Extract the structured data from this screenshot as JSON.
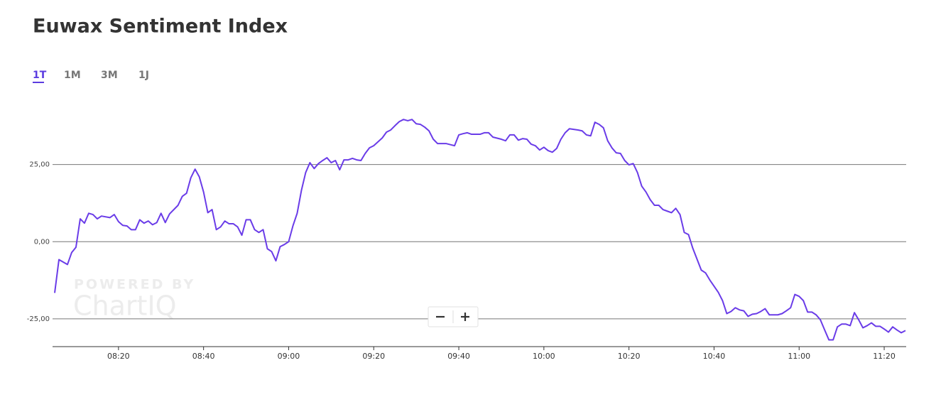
{
  "chart_data": {
    "type": "line",
    "title": "Euwax Sentiment Index",
    "range_tabs": [
      "1T",
      "1M",
      "3M",
      "1J"
    ],
    "active_tab": 0,
    "watermark": [
      "POWERED BY",
      "ChartIQ"
    ],
    "color": "#6a3ce8",
    "grid": true,
    "x": [
      "08:05",
      "08:06",
      "08:08",
      "08:09",
      "08:10",
      "08:11",
      "08:12",
      "08:13",
      "08:14",
      "08:15",
      "08:16",
      "08:18",
      "08:19",
      "08:20",
      "08:21",
      "08:22",
      "08:23",
      "08:24",
      "08:25",
      "08:26",
      "08:27",
      "08:28",
      "08:29",
      "08:30",
      "08:31",
      "08:32",
      "08:34",
      "08:35",
      "08:36",
      "08:37",
      "08:38",
      "08:39",
      "08:40",
      "08:41",
      "08:42",
      "08:43",
      "08:44",
      "08:45",
      "08:46",
      "08:47",
      "08:48",
      "08:49",
      "08:50",
      "08:51",
      "08:52",
      "08:53",
      "08:54",
      "08:55",
      "08:56",
      "08:57",
      "08:58",
      "08:59",
      "09:00",
      "09:01",
      "09:02",
      "09:03",
      "09:04",
      "09:05",
      "09:06",
      "09:07",
      "09:08",
      "09:09",
      "09:10",
      "09:11",
      "09:12",
      "09:13",
      "09:14",
      "09:15",
      "09:16",
      "09:17",
      "09:18",
      "09:19",
      "09:20",
      "09:22",
      "09:23",
      "09:24",
      "09:25",
      "09:26",
      "09:27",
      "09:28",
      "09:29",
      "09:30",
      "09:31",
      "09:32",
      "09:33",
      "09:34",
      "09:35",
      "09:37",
      "09:39",
      "09:40",
      "09:41",
      "09:42",
      "09:43",
      "09:45",
      "09:46",
      "09:47",
      "09:48",
      "09:50",
      "09:51",
      "09:52",
      "09:53",
      "09:54",
      "09:55",
      "09:56",
      "09:57",
      "09:58",
      "09:59",
      "10:00",
      "10:01",
      "10:02",
      "10:03",
      "10:04",
      "10:05",
      "10:06",
      "10:07",
      "10:08",
      "10:09",
      "10:10",
      "10:11",
      "10:12",
      "10:13",
      "10:14",
      "10:15",
      "10:16",
      "10:17",
      "10:18",
      "10:19",
      "10:20",
      "10:21",
      "10:22",
      "10:23",
      "10:24",
      "10:25",
      "10:26",
      "10:27",
      "10:28",
      "10:29",
      "10:30",
      "10:31",
      "10:32",
      "10:33",
      "10:34",
      "10:35",
      "10:37",
      "10:38",
      "10:39",
      "10:41",
      "10:42",
      "10:43",
      "10:44",
      "10:45",
      "10:46",
      "10:47",
      "10:48",
      "10:49",
      "10:50",
      "10:51",
      "10:52",
      "10:53",
      "10:55",
      "10:56",
      "10:57",
      "10:58",
      "10:59",
      "11:00",
      "11:01",
      "11:02",
      "11:03",
      "11:04",
      "11:05",
      "11:06",
      "11:07",
      "11:08",
      "11:09",
      "11:10",
      "11:11",
      "11:12",
      "11:13",
      "11:14",
      "11:15",
      "11:16",
      "11:17",
      "11:18",
      "11:19",
      "11:20",
      "11:21",
      "11:22",
      "11:23",
      "11:24",
      "11:25"
    ],
    "values": [
      -16.6,
      -5.8,
      -7.4,
      -3.5,
      -1.8,
      7.4,
      6.0,
      9.2,
      8.8,
      7.4,
      8.3,
      7.8,
      8.8,
      6.5,
      5.3,
      5.1,
      3.9,
      3.9,
      7.1,
      6.0,
      6.7,
      5.5,
      6.2,
      9.2,
      6.2,
      9.0,
      11.8,
      14.7,
      15.7,
      20.7,
      23.5,
      21.0,
      16.1,
      9.4,
      10.4,
      3.9,
      4.8,
      6.7,
      5.8,
      5.8,
      4.8,
      2.1,
      7.1,
      7.1,
      3.9,
      3.0,
      3.9,
      -2.3,
      -3.2,
      -6.2,
      -1.6,
      -0.9,
      0.0,
      5.1,
      9.2,
      16.6,
      22.4,
      25.6,
      23.7,
      25.3,
      26.3,
      27.2,
      25.6,
      26.3,
      23.3,
      26.5,
      26.5,
      27.0,
      26.5,
      26.3,
      28.6,
      30.4,
      31.1,
      33.6,
      35.5,
      36.2,
      37.6,
      38.9,
      39.6,
      39.2,
      39.6,
      38.2,
      38.0,
      37.1,
      35.9,
      33.2,
      31.8,
      31.8,
      31.1,
      34.6,
      35.0,
      35.3,
      34.8,
      34.8,
      35.3,
      35.3,
      33.9,
      33.2,
      32.7,
      34.6,
      34.6,
      32.9,
      33.4,
      33.2,
      31.6,
      31.1,
      29.7,
      30.6,
      29.5,
      29.0,
      30.2,
      33.2,
      35.3,
      36.6,
      36.4,
      36.2,
      35.9,
      34.6,
      34.3,
      38.7,
      38.0,
      36.9,
      32.7,
      30.4,
      28.8,
      28.6,
      26.3,
      24.9,
      25.3,
      22.4,
      18.0,
      16.1,
      13.6,
      11.8,
      11.8,
      10.4,
      9.9,
      9.4,
      10.8,
      8.8,
      3.0,
      2.3,
      -2.1,
      -9.2,
      -10.1,
      -12.4,
      -16.4,
      -19.1,
      -23.3,
      -22.6,
      -21.4,
      -22.1,
      -22.4,
      -24.2,
      -23.5,
      -23.3,
      -22.6,
      -21.7,
      -23.7,
      -23.7,
      -23.3,
      -22.4,
      -21.4,
      -17.1,
      -17.7,
      -19.1,
      -22.8,
      -22.8,
      -23.7,
      -25.3,
      -28.6,
      -31.8,
      -31.8,
      -27.6,
      -26.7,
      -26.7,
      -27.2,
      -23.0,
      -25.3,
      -27.9,
      -27.2,
      -26.3,
      -27.4,
      -27.4,
      -28.3,
      -29.3,
      -27.6,
      -28.6,
      -29.5,
      -28.8
    ],
    "xlim": [
      "08:05",
      "11:25"
    ],
    "xticks": [
      "08:20",
      "08:40",
      "09:00",
      "09:20",
      "09:40",
      "10:00",
      "10:20",
      "10:40",
      "11:00",
      "11:20"
    ],
    "ylim": [
      -34,
      48
    ],
    "yticks": [
      {
        "value": -25,
        "label": "-25,00"
      },
      {
        "value": 0,
        "label": "0,00"
      },
      {
        "value": 25,
        "label": "25,00"
      }
    ]
  }
}
